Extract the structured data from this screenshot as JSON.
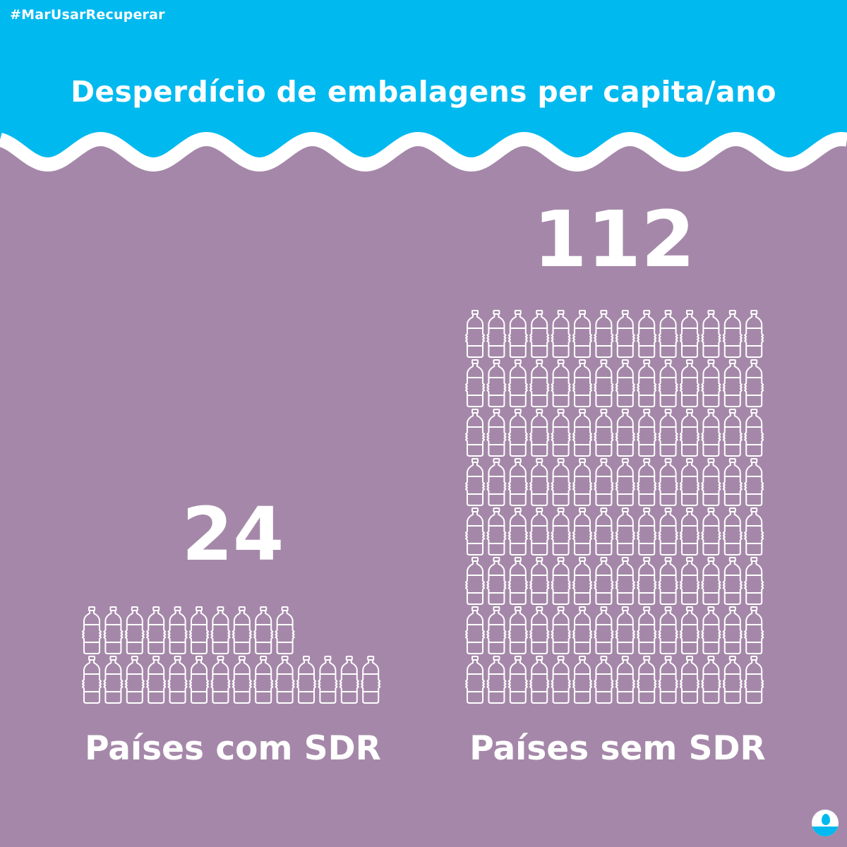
{
  "hashtag": "#MarUsarRecuperar",
  "title": "Desperdício de embalagens per capita/ano",
  "colors": {
    "header": "#00b9ef",
    "background": "#a588a9",
    "foreground": "#ffffff"
  },
  "logo_icon": "water-drop-logo-icon",
  "chart_data": {
    "type": "bar",
    "title": "Desperdício de embalagens per capita/ano",
    "categories": [
      "Países com SDR",
      "Países sem SDR"
    ],
    "values": [
      24,
      112
    ],
    "value_labels": [
      "24",
      "112"
    ],
    "xlabel": "",
    "ylabel": "",
    "unit_icon": "bottle-icon"
  }
}
